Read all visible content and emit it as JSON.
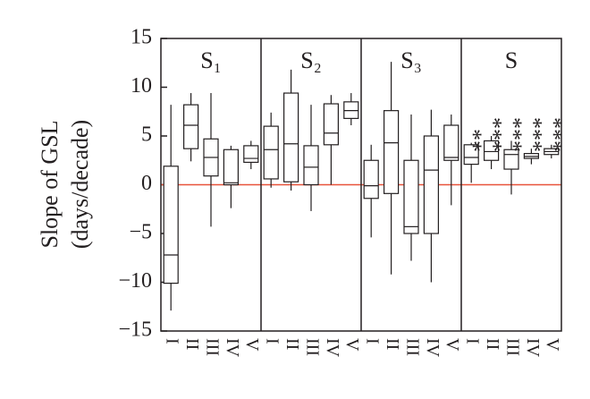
{
  "chart_data": {
    "type": "box",
    "y_label": [
      "Slope of GSL",
      "(days/decade)"
    ],
    "ylim": [
      -15,
      15
    ],
    "yticks": [
      {
        "value": -15,
        "label": "−15"
      },
      {
        "value": -10,
        "label": "−10"
      },
      {
        "value": -5,
        "label": "−5"
      },
      0,
      5,
      10,
      15
    ],
    "categories": [
      "I",
      "II",
      "III",
      "IV",
      "V"
    ],
    "reference_line": 0,
    "reference_color": "#e8523a",
    "color": "#231f20",
    "panels": [
      {
        "title": "S₁",
        "boxes": [
          {
            "min": -12.9,
            "q1": -10.1,
            "median": -7.2,
            "q3": 1.9,
            "max": 8.2
          },
          {
            "min": 2.4,
            "q1": 3.7,
            "median": 6.1,
            "q3": 8.2,
            "max": 9.4
          },
          {
            "min": -4.3,
            "q1": 0.9,
            "median": 2.8,
            "q3": 4.7,
            "max": 9.4
          },
          {
            "min": -2.4,
            "q1": 0,
            "median": 0.2,
            "q3": 3.6,
            "max": 4.0
          },
          {
            "min": 1.6,
            "q1": 2.3,
            "median": 2.7,
            "q3": 4.0,
            "max": 4.5
          }
        ]
      },
      {
        "title": "S₂",
        "boxes": [
          {
            "min": -0.3,
            "q1": 0.6,
            "median": 3.6,
            "q3": 6.0,
            "max": 7.4
          },
          {
            "min": -0.6,
            "q1": 0.3,
            "median": 4.2,
            "q3": 9.4,
            "max": 11.8
          },
          {
            "min": -2.7,
            "q1": 0,
            "median": 1.8,
            "q3": 4.0,
            "max": 8.2
          },
          {
            "min": 0,
            "q1": 4.1,
            "median": 5.3,
            "q3": 8.3,
            "max": 9.2
          },
          {
            "min": 6.1,
            "q1": 6.8,
            "median": 7.6,
            "q3": 8.5,
            "max": 9.4
          }
        ]
      },
      {
        "title": "S₃",
        "boxes": [
          {
            "min": -5.4,
            "q1": -1.4,
            "median": -0.1,
            "q3": 2.5,
            "max": 4.1
          },
          {
            "min": -9.2,
            "q1": -0.9,
            "median": 4.3,
            "q3": 7.6,
            "max": 12.6
          },
          {
            "min": -7.8,
            "q1": -5.0,
            "median": -4.3,
            "q3": 2.5,
            "max": 7.2
          },
          {
            "min": -10.0,
            "q1": -5.0,
            "median": 1.5,
            "q3": 5.0,
            "max": 7.7
          },
          {
            "min": -2.1,
            "q1": 2.5,
            "median": 2.8,
            "q3": 6.1,
            "max": 7.2
          }
        ]
      },
      {
        "title": "S",
        "annotations": [
          "**",
          "***",
          "***",
          "***",
          "***"
        ],
        "boxes": [
          {
            "min": 0.2,
            "q1": 2.1,
            "median": 2.8,
            "q3": 4.1,
            "max": 4.3
          },
          {
            "min": 1.6,
            "q1": 2.5,
            "median": 3.4,
            "q3": 4.5,
            "max": 5.0
          },
          {
            "min": -1.0,
            "q1": 1.6,
            "median": 3.1,
            "q3": 3.6,
            "max": 4.5
          },
          {
            "min": 2.1,
            "q1": 2.7,
            "median": 2.9,
            "q3": 3.2,
            "max": 3.7
          },
          {
            "min": 2.7,
            "q1": 3.1,
            "median": 3.4,
            "q3": 3.7,
            "max": 4.1
          }
        ]
      }
    ]
  }
}
